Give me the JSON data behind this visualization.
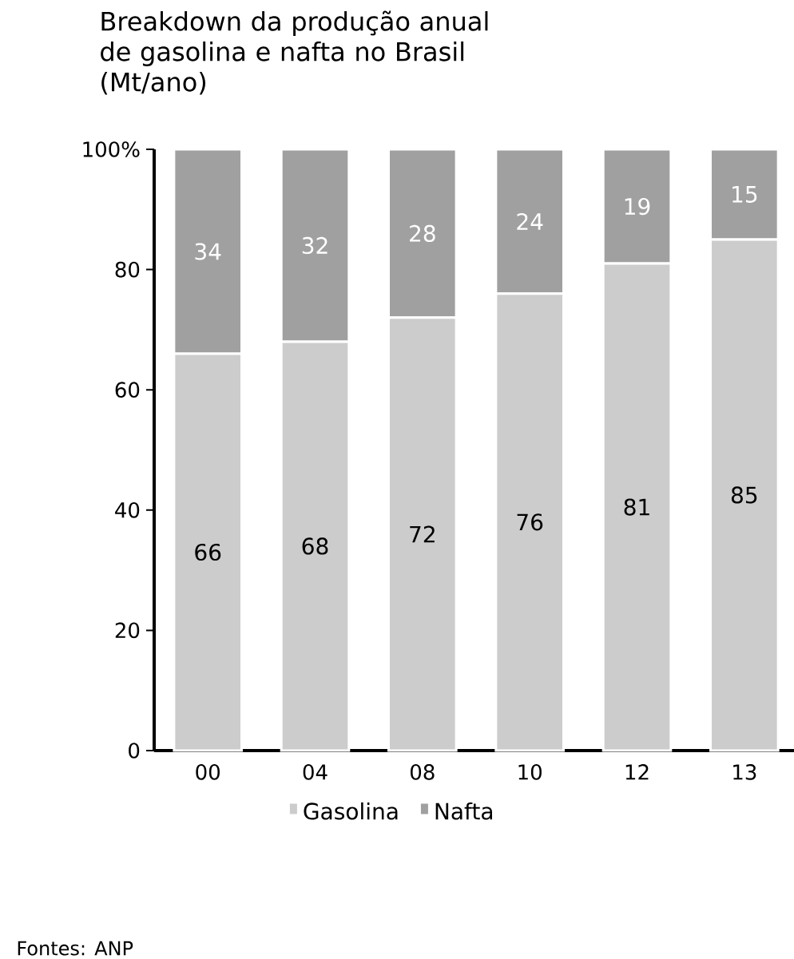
{
  "chart_data": {
    "type": "bar",
    "title": "Breakdown da produção anual de gasolina e nafta no Brasil (Mt/ano)",
    "categories": [
      "00",
      "04",
      "08",
      "10",
      "12",
      "13"
    ],
    "series": [
      {
        "name": "Gasolina",
        "color": "#cccccc",
        "values": [
          66,
          68,
          72,
          76,
          81,
          85
        ]
      },
      {
        "name": "Nafta",
        "color": "#a0a0a0",
        "values": [
          34,
          32,
          28,
          24,
          19,
          15
        ]
      }
    ],
    "stacked": true,
    "data_labels": true,
    "legend": "bottom",
    "grid": false,
    "ylim": [
      0,
      100
    ],
    "yticks": [
      0,
      20,
      40,
      60,
      80,
      {
        "value": 100,
        "label": "100%"
      }
    ],
    "annotations": [
      "Fontes: ANP"
    ]
  }
}
